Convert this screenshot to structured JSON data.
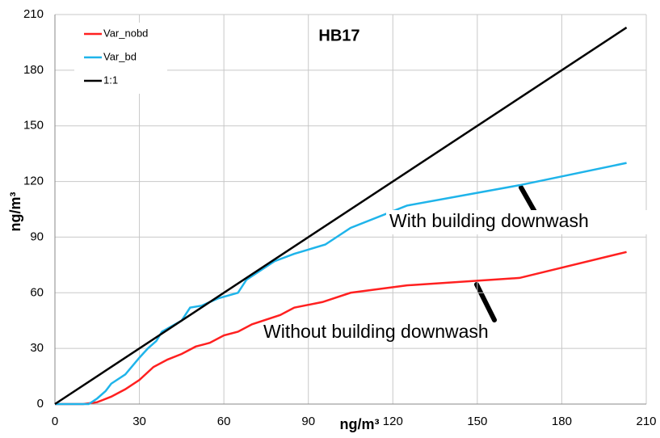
{
  "chart_data": {
    "type": "line",
    "title": "HB17",
    "xlabel": "ng/m³",
    "ylabel": "ng/m³",
    "xlim": [
      0,
      210
    ],
    "xticks": [
      0,
      30,
      60,
      90,
      120,
      150,
      180,
      210
    ],
    "ylim": [
      0,
      210
    ],
    "yticks": [
      0,
      30,
      60,
      90,
      120,
      150,
      180,
      210
    ],
    "grid": true,
    "legend": "upper left",
    "annotations": [
      "With building downwash",
      "Without building downwash"
    ],
    "series": [
      {
        "name": "Var_nobd",
        "color": "#ff2020",
        "x": [
          0,
          10,
          15,
          20,
          25,
          30,
          35,
          40,
          45,
          50,
          55,
          60,
          65,
          70,
          80,
          85,
          95,
          105,
          125,
          165,
          203
        ],
        "values": [
          0,
          0,
          1,
          4,
          8,
          13,
          20,
          24,
          27,
          31,
          33,
          37,
          39,
          43,
          48,
          52,
          55,
          60,
          64,
          68,
          82
        ]
      },
      {
        "name": "Var_bd",
        "color": "#1fb4ea",
        "x": [
          0,
          12,
          15,
          18,
          20,
          25,
          30,
          33,
          36,
          38,
          45,
          48,
          52,
          58,
          65,
          68,
          78,
          85,
          96,
          105,
          125,
          165,
          203
        ],
        "values": [
          0,
          0,
          3,
          7,
          11,
          16,
          25,
          30,
          34,
          39,
          45,
          52,
          53,
          57,
          60,
          67,
          77,
          81,
          86,
          95,
          107,
          118,
          130
        ]
      },
      {
        "name": "1:1",
        "color": "#000000",
        "x": [
          0,
          203
        ],
        "values": [
          0,
          203
        ]
      }
    ]
  }
}
